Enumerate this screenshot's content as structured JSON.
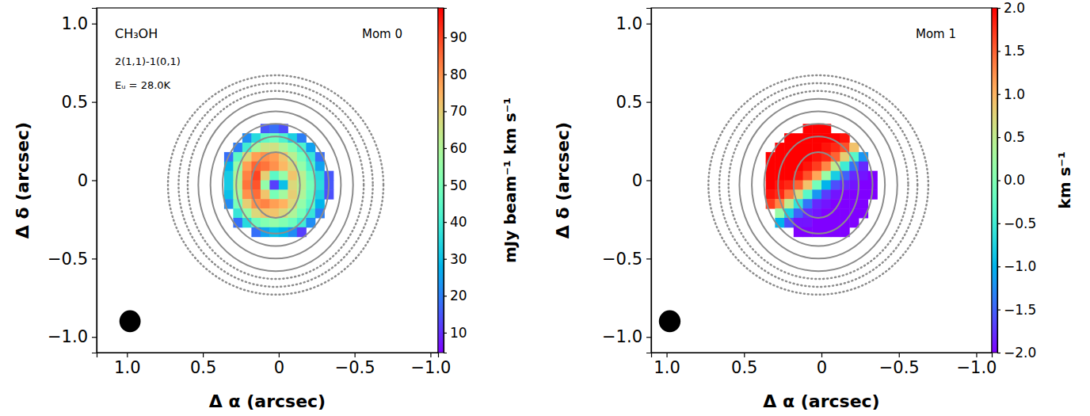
{
  "chart_data": [
    {
      "type": "heatmap",
      "title": "Mom 0",
      "annotations": [
        "CH₃OH",
        "2(1,1)-1(0,1)",
        "Eᵤ = 28.0K"
      ],
      "xlabel": "Δ α (arcsec)",
      "ylabel": "Δ δ (arcsec)",
      "xlim": [
        1.2,
        -1.05
      ],
      "ylim": [
        -1.1,
        1.1
      ],
      "xticks": [
        {
          "value": 1,
          "label": "1.0"
        },
        {
          "value": 0.5,
          "label": "0.5"
        },
        0,
        {
          "value": -0.5,
          "label": "−0.5"
        },
        {
          "value": -1,
          "label": "−1.0"
        }
      ],
      "yticks": [
        {
          "value": -1,
          "label": "−1.0"
        },
        {
          "value": -0.5,
          "label": "−0.5"
        },
        0,
        {
          "value": 0.5,
          "label": "0.5"
        },
        {
          "value": 1,
          "label": "1.0"
        }
      ],
      "x": [
        0.33,
        0.27,
        0.21,
        0.15,
        0.09,
        0.03,
        -0.03,
        -0.09,
        -0.15,
        -0.21,
        -0.27,
        -0.33
      ],
      "y": [
        0.33,
        0.27,
        0.21,
        0.15,
        0.09,
        0.03,
        -0.03,
        -0.09,
        -0.15,
        -0.21,
        -0.27,
        -0.33
      ],
      "z": [
        [
          null,
          null,
          null,
          null,
          15,
          18,
          14,
          null,
          null,
          null,
          null,
          null
        ],
        [
          null,
          null,
          22,
          35,
          45,
          48,
          42,
          33,
          20,
          null,
          null,
          null
        ],
        [
          null,
          20,
          40,
          58,
          65,
          66,
          60,
          52,
          42,
          25,
          null,
          null
        ],
        [
          18,
          45,
          68,
          78,
          80,
          78,
          72,
          62,
          50,
          38,
          18,
          null
        ],
        [
          28,
          55,
          78,
          86,
          84,
          80,
          74,
          68,
          55,
          42,
          25,
          null
        ],
        [
          32,
          60,
          82,
          90,
          70,
          45,
          55,
          72,
          62,
          48,
          35,
          15
        ],
        [
          32,
          62,
          84,
          88,
          55,
          12,
          30,
          68,
          62,
          50,
          36,
          15
        ],
        [
          30,
          58,
          80,
          85,
          72,
          50,
          58,
          70,
          60,
          48,
          33,
          14
        ],
        [
          22,
          50,
          70,
          80,
          82,
          78,
          75,
          68,
          55,
          45,
          28,
          null
        ],
        [
          null,
          38,
          55,
          68,
          72,
          72,
          68,
          60,
          50,
          38,
          20,
          null
        ],
        [
          null,
          18,
          35,
          48,
          52,
          55,
          52,
          48,
          40,
          22,
          null,
          null
        ],
        [
          null,
          null,
          null,
          18,
          25,
          30,
          28,
          22,
          12,
          null,
          null,
          null
        ]
      ],
      "zlim": [
        4.6,
        98
      ],
      "zticks": [
        10,
        20,
        30,
        40,
        50,
        60,
        70,
        80,
        90
      ],
      "colorbar_label": "mJy beam⁻¹ km s⁻¹",
      "contours": [
        {
          "x": 0.02,
          "y": -0.03,
          "rx": 0.16,
          "ry": 0.21,
          "line_style": "solid"
        },
        {
          "x": 0.02,
          "y": -0.03,
          "rx": 0.26,
          "ry": 0.31,
          "line_style": "solid"
        },
        {
          "x": 0.02,
          "y": -0.03,
          "rx": 0.35,
          "ry": 0.39,
          "line_style": "solid"
        },
        {
          "x": 0.02,
          "y": -0.03,
          "rx": 0.43,
          "ry": 0.47,
          "line_style": "solid"
        },
        {
          "x": 0.02,
          "y": -0.03,
          "rx": 0.51,
          "ry": 0.55,
          "line_style": "solid"
        },
        {
          "x": 0.02,
          "y": -0.03,
          "rx": 0.58,
          "ry": 0.6,
          "line_style": "dotted"
        },
        {
          "x": 0.02,
          "y": -0.03,
          "rx": 0.64,
          "ry": 0.65,
          "line_style": "dotted"
        },
        {
          "x": 0.02,
          "y": -0.03,
          "rx": 0.71,
          "ry": 0.7,
          "line_style": "dotted"
        }
      ],
      "beam": {
        "x": 0.98,
        "y": -0.9,
        "diameter": 0.14
      }
    },
    {
      "type": "heatmap",
      "title": "Mom 1",
      "xlabel": "Δ α (arcsec)",
      "ylabel": "Δ δ (arcsec)",
      "xlim": [
        1.1,
        -1.1
      ],
      "ylim": [
        -1.1,
        1.1
      ],
      "xticks": [
        {
          "value": 1,
          "label": "1.0"
        },
        {
          "value": 0.5,
          "label": "0.5"
        },
        0,
        {
          "value": -0.5,
          "label": "−0.5"
        },
        {
          "value": -1,
          "label": "−1.0"
        }
      ],
      "yticks": [
        {
          "value": -1,
          "label": "−1.0"
        },
        {
          "value": -0.5,
          "label": "−0.5"
        },
        0,
        {
          "value": 0.5,
          "label": "0.5"
        },
        {
          "value": 1,
          "label": "1.0"
        }
      ],
      "x": [
        0.33,
        0.27,
        0.21,
        0.15,
        0.09,
        0.03,
        -0.03,
        -0.09,
        -0.15,
        -0.21,
        -0.27,
        -0.33
      ],
      "y": [
        0.33,
        0.27,
        0.21,
        0.15,
        0.09,
        0.03,
        -0.03,
        -0.09,
        -0.15,
        -0.21,
        -0.27,
        -0.33
      ],
      "z": [
        [
          null,
          null,
          null,
          null,
          2.0,
          2.0,
          2.0,
          null,
          null,
          null,
          null,
          null
        ],
        [
          null,
          null,
          2.0,
          2.0,
          2.0,
          2.0,
          2.0,
          2.0,
          1.9,
          null,
          null,
          null
        ],
        [
          null,
          2.0,
          2.0,
          2.0,
          2.0,
          2.0,
          1.9,
          1.8,
          1.6,
          0.9,
          null,
          null
        ],
        [
          2.0,
          2.0,
          2.0,
          2.0,
          2.0,
          1.9,
          1.8,
          1.5,
          0.8,
          -0.3,
          -1.2,
          null
        ],
        [
          2.0,
          2.0,
          2.0,
          2.0,
          1.9,
          1.7,
          1.3,
          0.5,
          -0.5,
          -1.4,
          -1.8,
          null
        ],
        [
          2.0,
          2.0,
          2.0,
          1.9,
          1.6,
          1.1,
          0.2,
          -0.8,
          -1.5,
          -1.8,
          -1.9,
          -2.0
        ],
        [
          2.0,
          1.9,
          1.8,
          1.5,
          0.9,
          -0.1,
          -1.0,
          -1.6,
          -1.8,
          -1.9,
          -2.0,
          -2.0
        ],
        [
          1.9,
          1.8,
          1.4,
          0.7,
          -0.3,
          -1.2,
          -1.7,
          -1.9,
          -2.0,
          -2.0,
          -2.0,
          -2.0
        ],
        [
          1.7,
          1.3,
          0.5,
          -0.6,
          -1.4,
          -1.8,
          -1.9,
          -2.0,
          -2.0,
          -2.0,
          -2.0,
          null
        ],
        [
          null,
          0.2,
          -0.8,
          -1.5,
          -1.8,
          -1.9,
          -2.0,
          -2.0,
          -2.0,
          -2.0,
          -2.0,
          null
        ],
        [
          null,
          -1.0,
          -1.6,
          -1.9,
          -1.9,
          -2.0,
          -2.0,
          -2.0,
          -2.0,
          -2.0,
          null,
          null
        ],
        [
          null,
          null,
          null,
          -2.0,
          -2.0,
          -2.0,
          -2.0,
          -2.0,
          -2.0,
          null,
          null,
          null
        ]
      ],
      "zlim": [
        -2,
        2
      ],
      "zticks": [
        {
          "value": -2,
          "label": "−2.0"
        },
        {
          "value": -1.5,
          "label": "−1.5"
        },
        {
          "value": -1,
          "label": "−1.0"
        },
        {
          "value": -0.5,
          "label": "−0.5"
        },
        {
          "value": 0,
          "label": "0.0"
        },
        {
          "value": 0.5,
          "label": "0.5"
        },
        {
          "value": 1,
          "label": "1.0"
        },
        {
          "value": 1.5,
          "label": "1.5"
        },
        {
          "value": 2,
          "label": "2.0"
        }
      ],
      "colorbar_label": "km s⁻¹",
      "contours": [
        {
          "x": 0.02,
          "y": -0.03,
          "rx": 0.16,
          "ry": 0.21,
          "line_style": "solid"
        },
        {
          "x": 0.02,
          "y": -0.03,
          "rx": 0.26,
          "ry": 0.31,
          "line_style": "solid"
        },
        {
          "x": 0.02,
          "y": -0.03,
          "rx": 0.35,
          "ry": 0.39,
          "line_style": "solid"
        },
        {
          "x": 0.02,
          "y": -0.03,
          "rx": 0.43,
          "ry": 0.47,
          "line_style": "solid"
        },
        {
          "x": 0.02,
          "y": -0.03,
          "rx": 0.51,
          "ry": 0.55,
          "line_style": "solid"
        },
        {
          "x": 0.02,
          "y": -0.03,
          "rx": 0.58,
          "ry": 0.6,
          "line_style": "dotted"
        },
        {
          "x": 0.02,
          "y": -0.03,
          "rx": 0.64,
          "ry": 0.65,
          "line_style": "dotted"
        },
        {
          "x": 0.02,
          "y": -0.03,
          "rx": 0.71,
          "ry": 0.7,
          "line_style": "dotted"
        }
      ],
      "beam": {
        "x": 0.98,
        "y": -0.9,
        "diameter": 0.14
      }
    }
  ]
}
